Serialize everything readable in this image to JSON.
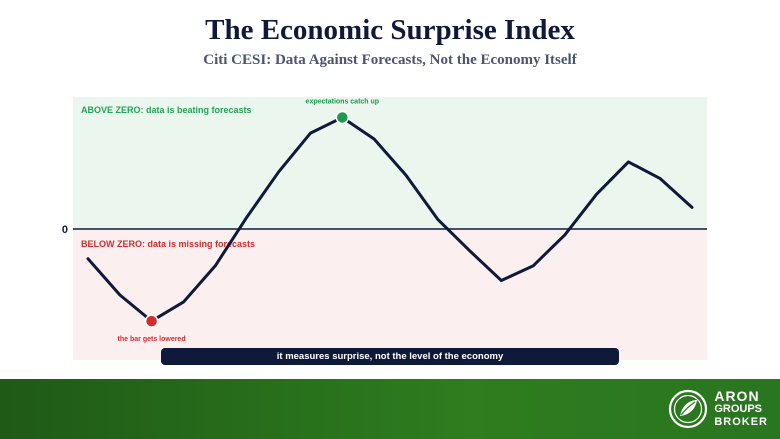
{
  "title": "The Economic Surprise Index",
  "subtitle": "Citi CESI: Data Against Forecasts, Not the Economy Itself",
  "caption": "it measures surprise, not the level of the economy",
  "brand": {
    "line1": "ARON",
    "line2": "GROUPS",
    "line3": "BROKER"
  },
  "colors": {
    "positive_zone": "#eaf6ee",
    "negative_zone": "#fcefef",
    "line": "#0f1a3a",
    "positive_text": "#23a455",
    "negative_text": "#d62b2b",
    "footer": "#2e7d1e"
  },
  "chart_data": {
    "type": "line",
    "title": "The Economic Surprise Index",
    "subtitle": "Citi CESI: Data Against Forecasts, Not the Economy Itself",
    "xlabel": "",
    "ylabel": "",
    "zero_label": "0",
    "ylim": [
      -60,
      60
    ],
    "grid": false,
    "zones": {
      "above": "ABOVE ZERO: data is beating forecasts",
      "below": "BELOW ZERO: data is missing forecasts"
    },
    "series": [
      {
        "values": [
          -13.6,
          -30.2,
          -42.2,
          -33.5,
          -16.9,
          5.4,
          26.0,
          43.6,
          50.7,
          40.9,
          24.5,
          4.4,
          -9.9,
          -23.6,
          -16.9,
          -2.7,
          15.8,
          30.5,
          22.9,
          9.8
        ]
      }
    ],
    "highlights": [
      {
        "index": 2,
        "label": "the bar gets lowered",
        "color": "#d62b2b"
      },
      {
        "index": 8,
        "label": "expectations catch up",
        "color": "#1f9a4f"
      }
    ]
  }
}
